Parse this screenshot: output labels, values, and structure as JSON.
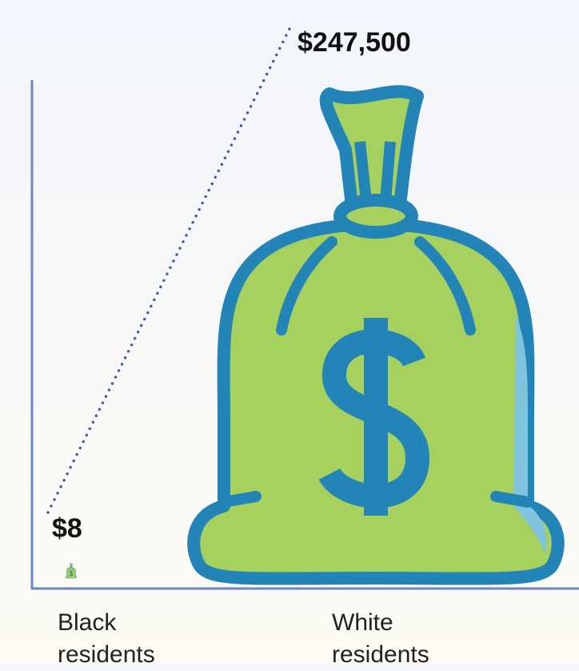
{
  "chart_data": {
    "type": "pictogram",
    "categories": [
      "Black residents",
      "White residents"
    ],
    "values": [
      8,
      247500
    ],
    "value_labels": [
      "$8",
      "$247,500"
    ],
    "color": "#a6d15e",
    "stroke_color": "#2384b8",
    "axis_color": "#6b86c0"
  }
}
